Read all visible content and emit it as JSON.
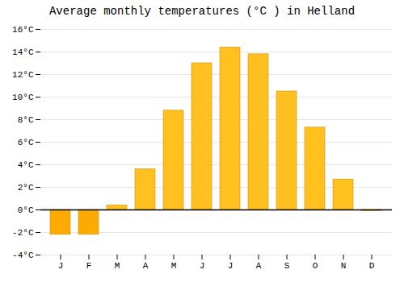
{
  "chart_data": {
    "type": "bar",
    "title": "Average monthly temperatures (°C ) in Helland",
    "categories": [
      "J",
      "F",
      "M",
      "A",
      "M",
      "J",
      "J",
      "A",
      "S",
      "O",
      "N",
      "D"
    ],
    "values": [
      -2.2,
      -2.2,
      0.4,
      3.6,
      8.8,
      13.0,
      14.4,
      13.8,
      10.5,
      7.3,
      2.7,
      -0.1
    ],
    "colors": [
      "#FFAA00",
      "#FFAA00",
      "#FFC020",
      "#FFC020",
      "#FFC020",
      "#FFC020",
      "#FFC020",
      "#FFC020",
      "#FFC020",
      "#FFC020",
      "#FFC020",
      "#FFAA00"
    ],
    "ylim": [
      -4,
      16
    ],
    "yticks": [
      {
        "value": -4,
        "label": "-4°C"
      },
      {
        "value": -2,
        "label": "-2°C"
      },
      {
        "value": 0,
        "label": "0°C"
      },
      {
        "value": 2,
        "label": "2°C"
      },
      {
        "value": 4,
        "label": "4°C"
      },
      {
        "value": 6,
        "label": "6°C"
      },
      {
        "value": 8,
        "label": "8°C"
      },
      {
        "value": 10,
        "label": "10°C"
      },
      {
        "value": 12,
        "label": "12°C"
      },
      {
        "value": 14,
        "label": "14°C"
      },
      {
        "value": 16,
        "label": "16°C"
      }
    ],
    "grid": true
  }
}
